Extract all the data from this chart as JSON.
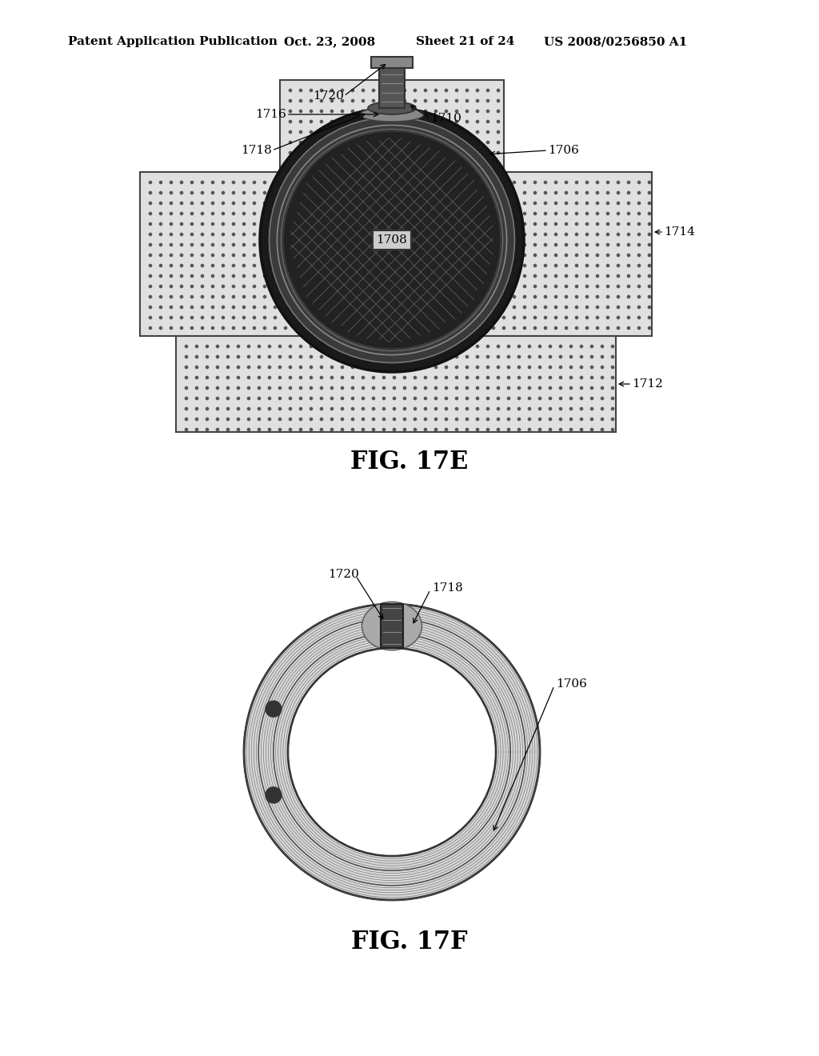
{
  "background_color": "#ffffff",
  "header_text": "Patent Application Publication",
  "header_date": "Oct. 23, 2008",
  "header_sheet": "Sheet 21 of 24",
  "header_patent": "US 2008/0256850 A1",
  "fig17e_label": "FIG. 17E",
  "fig17f_label": "FIG. 17F",
  "annotation_fontsize": 11,
  "header_fontsize": 11
}
